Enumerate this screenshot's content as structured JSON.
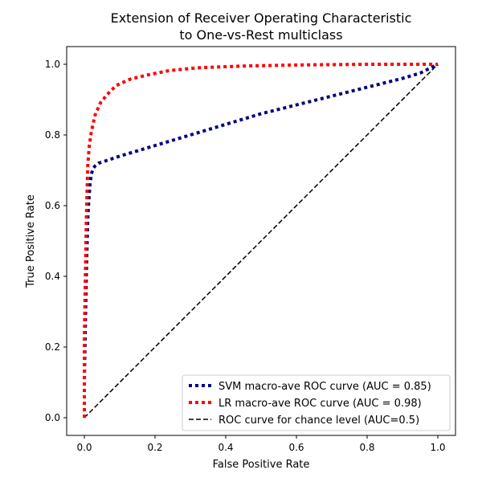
{
  "chart_data": {
    "type": "line",
    "title": [
      "Extension of Receiver Operating Characteristic",
      "to One-vs-Rest multiclass"
    ],
    "xlabel": "False Positive Rate",
    "ylabel": "True Positive Rate",
    "xlim": [
      -0.05,
      1.05
    ],
    "ylim": [
      -0.05,
      1.05
    ],
    "xticks": [
      0.0,
      0.2,
      0.4,
      0.6,
      0.8,
      1.0
    ],
    "yticks": [
      0.0,
      0.2,
      0.4,
      0.6,
      0.8,
      1.0
    ],
    "xtick_labels": [
      "0.0",
      "0.2",
      "0.4",
      "0.6",
      "0.8",
      "1.0"
    ],
    "ytick_labels": [
      "0.0",
      "0.2",
      "0.4",
      "0.6",
      "0.8",
      "1.0"
    ],
    "grid": false,
    "legend_position": "bottom-right",
    "series": [
      {
        "name": "SVM macro-ave ROC curve (AUC = 0.85)",
        "color": "#000080",
        "style": "dotted",
        "x": [
          0.0,
          0.0,
          0.002,
          0.004,
          0.006,
          0.008,
          0.01,
          0.013,
          0.016,
          0.02,
          0.025,
          0.03,
          0.04,
          0.1,
          0.2,
          0.3,
          0.4,
          0.5,
          0.6,
          0.7,
          0.8,
          0.9,
          0.95,
          1.0
        ],
        "y": [
          0.0,
          0.1,
          0.22,
          0.33,
          0.42,
          0.5,
          0.57,
          0.62,
          0.66,
          0.69,
          0.705,
          0.712,
          0.72,
          0.74,
          0.77,
          0.8,
          0.83,
          0.86,
          0.885,
          0.91,
          0.935,
          0.96,
          0.975,
          1.0
        ]
      },
      {
        "name": "LR macro-ave ROC curve (AUC = 0.98)",
        "color": "#ff0000",
        "style": "dotted",
        "x": [
          0.0,
          0.0,
          0.002,
          0.004,
          0.006,
          0.008,
          0.01,
          0.014,
          0.02,
          0.03,
          0.045,
          0.065,
          0.09,
          0.13,
          0.18,
          0.24,
          0.32,
          0.45,
          0.6,
          0.8,
          1.0
        ],
        "y": [
          0.0,
          0.22,
          0.35,
          0.47,
          0.57,
          0.65,
          0.72,
          0.77,
          0.81,
          0.855,
          0.89,
          0.915,
          0.94,
          0.958,
          0.97,
          0.982,
          0.99,
          0.995,
          0.998,
          1.0,
          1.0
        ]
      },
      {
        "name": "ROC curve for chance level (AUC=0.5)",
        "color": "#000000",
        "style": "dashed",
        "x": [
          0.0,
          1.0
        ],
        "y": [
          0.0,
          1.0
        ]
      }
    ]
  }
}
